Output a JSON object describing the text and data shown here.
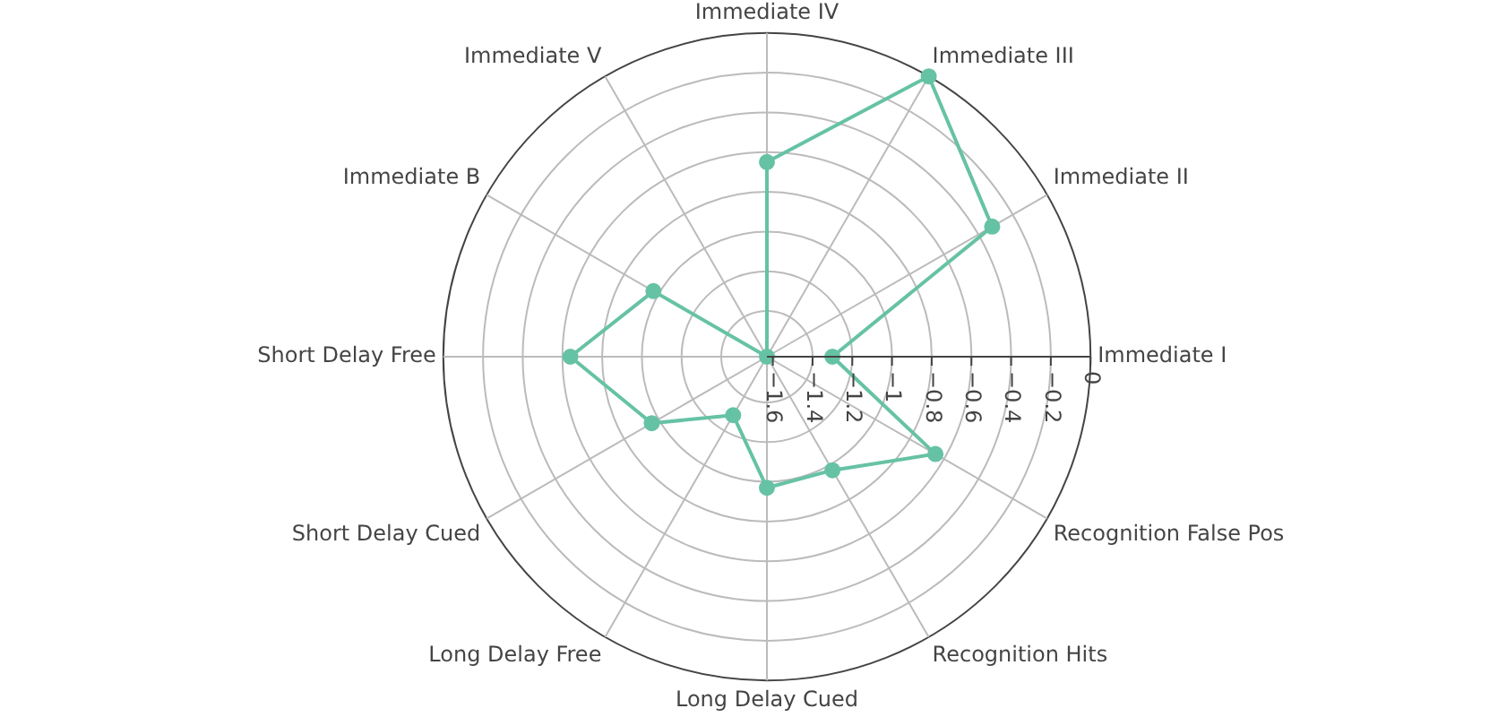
{
  "chart_data": {
    "type": "radar",
    "categories": [
      "Immediate IV",
      "Immediate III",
      "Immediate II",
      "Immediate I",
      "Recognition False Pos",
      "Recognition Hits",
      "Long Delay Cued",
      "Long Delay Free",
      "Short Delay Cued",
      "Short Delay Free",
      "Immediate B",
      "Immediate V"
    ],
    "series": [
      {
        "color": "#66c2a5",
        "values": [
          -0.65,
          0,
          -0.32,
          -1.3,
          -0.65,
          -0.97,
          -0.97,
          -1.29,
          -0.96,
          -0.64,
          -0.97,
          -1.63
        ]
      }
    ],
    "ylim": [
      -1.63,
      0
    ],
    "yticks": [
      {
        "value": -1.6,
        "label": "−1.6"
      },
      {
        "value": -1.4,
        "label": "−1.4"
      },
      {
        "value": -1.2,
        "label": "−1.2"
      },
      {
        "value": -1,
        "label": "−1"
      },
      {
        "value": -0.8,
        "label": "−0.8"
      },
      {
        "value": -0.6,
        "label": "−0.6"
      },
      {
        "value": -0.4,
        "label": "−0.4"
      },
      {
        "value": -0.2,
        "label": "−0.2"
      },
      0
    ],
    "grid": true,
    "legend": false,
    "marker": "circle"
  }
}
